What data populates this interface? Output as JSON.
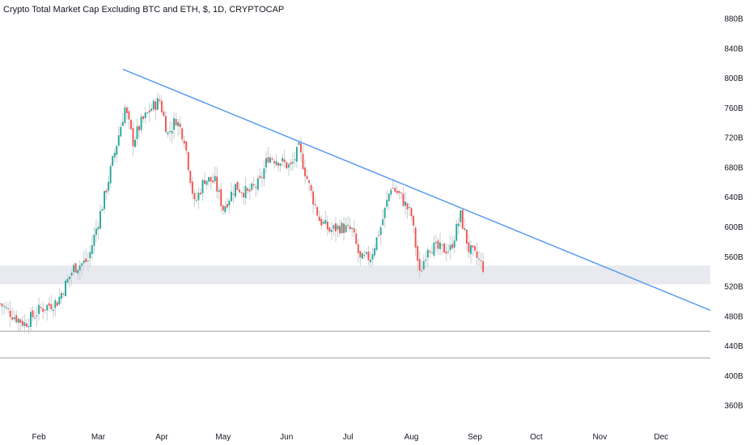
{
  "title": "Crypto Total Market Cap Excluding BTC and ETH, $, 1D, CRYPTOCAP",
  "colors": {
    "up": "#26a69a",
    "down": "#ef5350",
    "trendline": "#5b9cf0",
    "zone": "#e8eaf0",
    "hline": "#9aa0a6",
    "wick_light": "#c9ccd1"
  },
  "chart_data": {
    "type": "candlestick",
    "y_ticks": [
      "880B",
      "840B",
      "800B",
      "760B",
      "720B",
      "680B",
      "640B",
      "600B",
      "560B",
      "520B",
      "480B",
      "440B",
      "400B",
      "360B"
    ],
    "y_tick_values": [
      880,
      840,
      800,
      760,
      720,
      680,
      640,
      600,
      560,
      520,
      480,
      440,
      400,
      360
    ],
    "x_ticks": [
      "Feb",
      "Mar",
      "Apr",
      "May",
      "Jun",
      "Jul",
      "Aug",
      "Sep",
      "Oct",
      "Nov",
      "Dec"
    ],
    "x_tick_dates": [
      "2024-02-01",
      "2024-03-01",
      "2024-04-01",
      "2024-05-01",
      "2024-06-01",
      "2024-07-01",
      "2024-08-01",
      "2024-09-01",
      "2024-10-01",
      "2024-11-01",
      "2024-12-01"
    ],
    "ylim": [
      345,
      905
    ],
    "xlim": [
      "2024-01-13",
      "2024-12-25"
    ],
    "support_zone": [
      523,
      548
    ],
    "horizontal_lines": [
      460,
      424
    ],
    "trendline": {
      "start": [
        "2024-03-13",
        812
      ],
      "end": [
        "2024-12-25",
        488
      ]
    },
    "close_anchors": [
      [
        "2024-01-13",
        497
      ],
      [
        "2024-01-20",
        480
      ],
      [
        "2024-01-25",
        470
      ],
      [
        "2024-02-02",
        490
      ],
      [
        "2024-02-10",
        500
      ],
      [
        "2024-02-18",
        545
      ],
      [
        "2024-02-25",
        555
      ],
      [
        "2024-03-04",
        640
      ],
      [
        "2024-03-09",
        700
      ],
      [
        "2024-03-14",
        760
      ],
      [
        "2024-03-18",
        715
      ],
      [
        "2024-03-22",
        740
      ],
      [
        "2024-03-27",
        760
      ],
      [
        "2024-03-31",
        770
      ],
      [
        "2024-04-04",
        725
      ],
      [
        "2024-04-08",
        745
      ],
      [
        "2024-04-12",
        720
      ],
      [
        "2024-04-17",
        630
      ],
      [
        "2024-04-22",
        665
      ],
      [
        "2024-04-27",
        660
      ],
      [
        "2024-05-01",
        625
      ],
      [
        "2024-05-07",
        655
      ],
      [
        "2024-05-13",
        645
      ],
      [
        "2024-05-19",
        660
      ],
      [
        "2024-05-23",
        695
      ],
      [
        "2024-05-28",
        690
      ],
      [
        "2024-06-03",
        680
      ],
      [
        "2024-06-07",
        705
      ],
      [
        "2024-06-12",
        655
      ],
      [
        "2024-06-17",
        610
      ],
      [
        "2024-06-22",
        595
      ],
      [
        "2024-06-27",
        600
      ],
      [
        "2024-07-03",
        595
      ],
      [
        "2024-07-07",
        555
      ],
      [
        "2024-07-12",
        560
      ],
      [
        "2024-07-17",
        600
      ],
      [
        "2024-07-22",
        655
      ],
      [
        "2024-07-27",
        640
      ],
      [
        "2024-08-01",
        615
      ],
      [
        "2024-08-05",
        535
      ],
      [
        "2024-08-09",
        575
      ],
      [
        "2024-08-14",
        570
      ],
      [
        "2024-08-20",
        570
      ],
      [
        "2024-08-25",
        615
      ],
      [
        "2024-08-29",
        570
      ],
      [
        "2024-09-03",
        555
      ],
      [
        "2024-09-05",
        546
      ]
    ],
    "last_date": "2024-09-05"
  }
}
